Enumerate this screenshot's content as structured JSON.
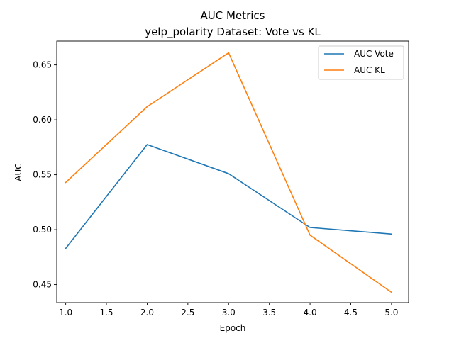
{
  "chart_data": {
    "type": "line",
    "title": "AUC Metrics",
    "subtitle": "yelp_polarity Dataset: Vote vs KL",
    "xlabel": "Epoch",
    "ylabel": "AUC",
    "x": [
      1.0,
      2.0,
      3.0,
      4.0,
      5.0
    ],
    "xlim": [
      0.89,
      5.21
    ],
    "ylim": [
      0.4336,
      0.6717
    ],
    "xticks": [
      1.0,
      1.5,
      2.0,
      2.5,
      3.0,
      3.5,
      4.0,
      4.5,
      5.0
    ],
    "yticks": [
      0.45,
      0.5,
      0.55,
      0.6,
      0.65
    ],
    "xtick_labels": [
      "1.0",
      "1.5",
      "2.0",
      "2.5",
      "3.0",
      "3.5",
      "4.0",
      "4.5",
      "5.0"
    ],
    "ytick_labels": [
      "0.45",
      "0.50",
      "0.55",
      "0.60",
      "0.65"
    ],
    "grid": false,
    "legend_position": "top-right",
    "series": [
      {
        "name": "AUC Vote",
        "color": "#1f77b4",
        "values": [
          0.483,
          0.5775,
          0.551,
          0.502,
          0.496
        ]
      },
      {
        "name": "AUC KL",
        "color": "#ff7f0e",
        "values": [
          0.543,
          0.612,
          0.661,
          0.495,
          0.443
        ]
      }
    ]
  }
}
